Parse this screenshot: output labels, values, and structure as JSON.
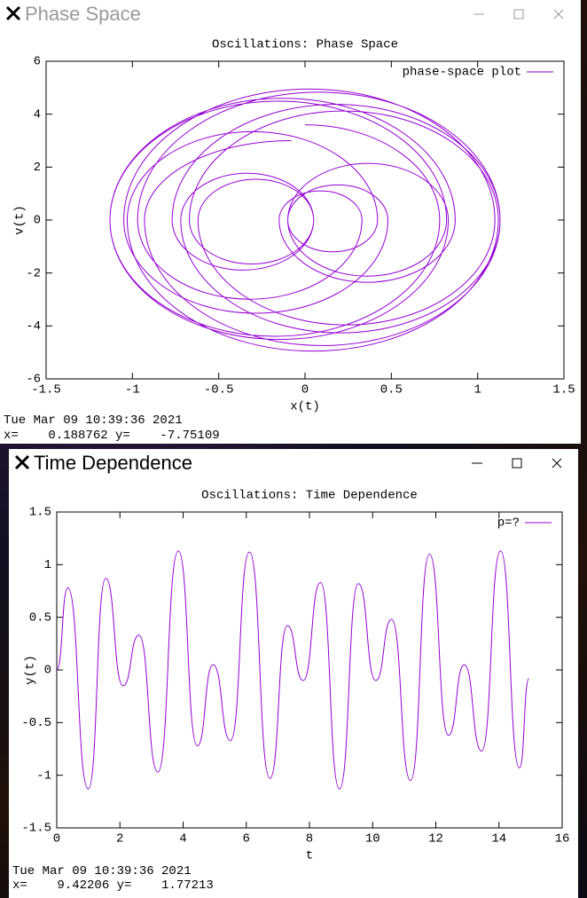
{
  "windows": [
    {
      "title": "Phase Space",
      "status_time": "Tue Mar 09 10:39:36 2021",
      "status_coords": "x=    0.188762 y=    -7.75109"
    },
    {
      "title": "Time Dependence",
      "status_time": "Tue Mar 09 10:39:36 2021",
      "status_coords": "x=    9.42206 y=    1.77213"
    }
  ],
  "chart_data": [
    {
      "type": "line",
      "title": "Oscillations: Phase Space",
      "xlabel": "x(t)",
      "ylabel": "v(t)",
      "xlim": [
        -1.5,
        1.5
      ],
      "xticks": [
        -1.5,
        -1,
        -0.5,
        0,
        0.5,
        1,
        1.5
      ],
      "ylim": [
        -6,
        6
      ],
      "yticks": [
        -6,
        -4,
        -2,
        0,
        2,
        4,
        6
      ],
      "legend": "top-right",
      "x": [
        0,
        0.78,
        -0.175,
        -1.13,
        -0.13,
        0.87,
        0.36,
        -0.15,
        0.09,
        0.33,
        -0.32,
        -0.97,
        0.08,
        1.13,
        0.205,
        -0.72,
        -0.335,
        0.05,
        -0.31,
        -0.67,
        0.225,
        1.12,
        0.045,
        -1.03,
        -0.305,
        0.42,
        0.16,
        -0.1,
        0.365,
        0.83,
        -0.15,
        -1.13,
        -0.155,
        0.82,
        0.36,
        -0.1,
        0.19,
        0.48,
        -0.285,
        -1.05,
        0.025,
        1.1,
        0.24,
        -0.62,
        -0.285,
        0.05,
        -0.36,
        -0.77,
        0.18,
        1.13,
        0.1,
        -0.93,
        -0.08
      ],
      "series": [
        {
          "name": "phase-space plot",
          "color": "#9400d3",
          "values": [
            3.6,
            0,
            -4.39,
            0,
            4.6,
            0,
            -2.35,
            0,
            1.1,
            0,
            -2.99,
            0,
            4.83,
            0,
            -4.26,
            0,
            1.77,
            0,
            -1.66,
            0,
            4.12,
            0,
            -4.95,
            0,
            3.34,
            0,
            -1.2,
            0,
            2.14,
            0,
            -4.51,
            0,
            4.49,
            0,
            -2.12,
            0,
            1.33,
            0,
            -3.52,
            0,
            4.95,
            0,
            -3.96,
            0,
            1.54,
            0,
            -1.89,
            0,
            4.37,
            0,
            -4.74,
            0,
            3.0
          ]
        }
      ]
    },
    {
      "type": "line",
      "title": "Oscillations: Time Dependence",
      "xlabel": "t",
      "ylabel": "y(t)",
      "xlim": [
        0,
        16
      ],
      "xticks": [
        0,
        2,
        4,
        6,
        8,
        10,
        12,
        14,
        16
      ],
      "ylim": [
        -1.5,
        1.5
      ],
      "yticks": [
        -1.5,
        -1,
        -0.5,
        0,
        0.5,
        1,
        1.5
      ],
      "legend": "top-right",
      "x": [
        0,
        0.35,
        1.0,
        1.55,
        2.1,
        2.6,
        3.2,
        3.85,
        4.45,
        4.95,
        5.5,
        6.1,
        6.75,
        7.3,
        7.8,
        8.35,
        8.95,
        9.55,
        10.1,
        10.6,
        11.2,
        11.8,
        12.4,
        12.9,
        13.45,
        14.05,
        14.65,
        14.95
      ],
      "series": [
        {
          "name": "p=?",
          "color": "#9400d3",
          "values": [
            0,
            0.78,
            -1.13,
            0.87,
            -0.15,
            0.33,
            -0.97,
            1.13,
            -0.72,
            0.05,
            -0.67,
            1.12,
            -1.03,
            0.42,
            -0.1,
            0.83,
            -1.13,
            0.82,
            -0.1,
            0.48,
            -1.05,
            1.1,
            -0.62,
            0.05,
            -0.77,
            1.13,
            -0.93,
            -0.08
          ]
        }
      ]
    }
  ]
}
